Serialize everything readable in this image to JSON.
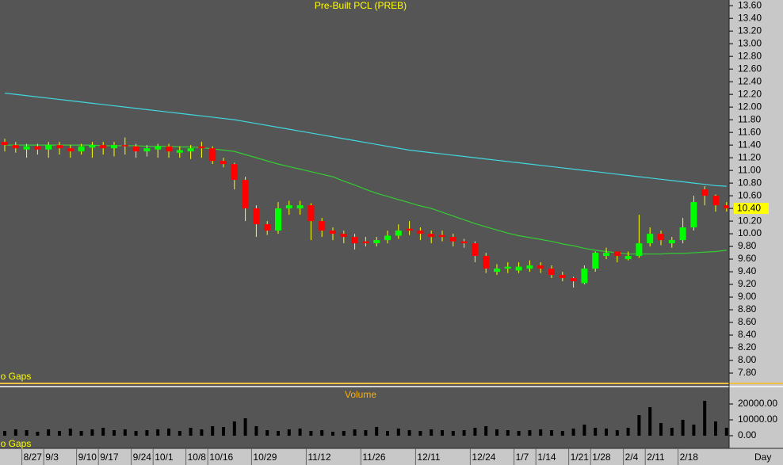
{
  "chart_data": [
    {
      "type": "candlestick",
      "title": "Pre-Built PCL (PREB)",
      "annotation": "No Gaps",
      "x_unit": "Day",
      "categories": [
        null,
        null,
        "8/27",
        null,
        "9/3",
        null,
        null,
        "9/10",
        null,
        "9/17",
        null,
        null,
        "9/24",
        null,
        "10/1",
        null,
        null,
        "10/8",
        null,
        "10/16",
        null,
        null,
        null,
        "10/29",
        null,
        null,
        null,
        null,
        "11/12",
        null,
        null,
        null,
        null,
        "11/26",
        null,
        null,
        null,
        null,
        "12/11",
        null,
        null,
        null,
        null,
        "12/24",
        null,
        null,
        null,
        "1/7",
        null,
        "1/14",
        null,
        null,
        "1/21",
        null,
        "1/28",
        null,
        null,
        "2/4",
        null,
        "2/11",
        null,
        null,
        "2/18",
        null,
        null,
        null,
        null
      ],
      "open": [
        11.45,
        11.4,
        11.33,
        11.38,
        11.33,
        11.4,
        11.35,
        11.3,
        11.36,
        11.4,
        11.35,
        11.4,
        11.38,
        11.3,
        11.33,
        11.38,
        11.28,
        11.3,
        11.38,
        11.35,
        11.15,
        11.1,
        10.85,
        10.4,
        10.15,
        10.05,
        10.4,
        10.4,
        10.45,
        10.2,
        10.05,
        10.0,
        9.95,
        9.88,
        9.85,
        9.9,
        9.97,
        10.08,
        10.05,
        10.0,
        9.98,
        9.95,
        9.88,
        9.85,
        9.65,
        9.4,
        9.45,
        9.42,
        9.45,
        9.5,
        9.45,
        9.35,
        9.3,
        9.22,
        9.45,
        9.65,
        9.72,
        9.6,
        9.65,
        9.85,
        10.0,
        9.85,
        9.9,
        10.1,
        10.7,
        10.6,
        10.45
      ],
      "high": [
        11.5,
        11.45,
        11.42,
        11.42,
        11.45,
        11.45,
        11.4,
        11.42,
        11.45,
        11.45,
        11.45,
        11.52,
        11.42,
        11.4,
        11.42,
        11.42,
        11.38,
        11.4,
        11.45,
        11.38,
        11.2,
        11.12,
        10.9,
        10.45,
        10.2,
        10.5,
        10.52,
        10.52,
        10.48,
        10.25,
        10.1,
        10.05,
        10.0,
        9.95,
        9.95,
        10.05,
        10.15,
        10.2,
        10.1,
        10.05,
        10.05,
        10.0,
        9.92,
        9.88,
        9.7,
        9.52,
        9.55,
        9.55,
        9.58,
        9.55,
        9.5,
        9.4,
        9.32,
        9.5,
        9.72,
        9.78,
        9.72,
        9.72,
        10.3,
        10.1,
        10.05,
        9.95,
        10.25,
        10.6,
        10.75,
        10.62,
        10.5
      ],
      "low": [
        11.3,
        11.28,
        11.2,
        11.25,
        11.2,
        11.25,
        11.2,
        11.25,
        11.2,
        11.25,
        11.22,
        11.25,
        11.2,
        11.22,
        11.2,
        11.2,
        11.2,
        11.18,
        11.2,
        11.1,
        11.05,
        10.7,
        10.2,
        9.95,
        9.98,
        10.0,
        10.3,
        10.3,
        9.9,
        9.95,
        9.9,
        9.85,
        9.75,
        9.8,
        9.8,
        9.85,
        9.92,
        9.98,
        9.9,
        9.85,
        9.88,
        9.8,
        9.78,
        9.55,
        9.38,
        9.35,
        9.38,
        9.38,
        9.4,
        9.38,
        9.3,
        9.25,
        9.15,
        9.2,
        9.4,
        9.6,
        9.55,
        9.58,
        9.62,
        9.8,
        9.82,
        9.78,
        9.85,
        10.05,
        10.45,
        10.35,
        10.35
      ],
      "close": [
        11.4,
        11.35,
        11.38,
        11.33,
        11.4,
        11.35,
        11.3,
        11.38,
        11.4,
        11.35,
        11.4,
        11.38,
        11.3,
        11.35,
        11.38,
        11.3,
        11.32,
        11.35,
        11.35,
        11.15,
        11.1,
        10.85,
        10.4,
        10.15,
        10.05,
        10.4,
        10.45,
        10.45,
        10.2,
        10.05,
        10.0,
        9.95,
        9.85,
        9.85,
        9.9,
        9.97,
        10.05,
        10.05,
        10.0,
        9.95,
        9.95,
        9.88,
        9.85,
        9.65,
        9.45,
        9.45,
        9.48,
        9.48,
        9.5,
        9.45,
        9.35,
        9.3,
        9.25,
        9.45,
        9.7,
        9.7,
        9.65,
        9.65,
        9.85,
        10.0,
        9.9,
        9.9,
        10.1,
        10.5,
        10.6,
        10.45,
        10.4
      ],
      "up_color": "#00ff00",
      "down_color": "#ff0000",
      "wick_color": "#ffff00",
      "overlays": [
        {
          "color": "#40d8e0",
          "values": [
            12.22,
            12.2,
            12.18,
            12.16,
            12.14,
            12.12,
            12.1,
            12.08,
            12.06,
            12.04,
            12.02,
            12.0,
            11.98,
            11.96,
            11.94,
            11.92,
            11.9,
            11.88,
            11.86,
            11.84,
            11.82,
            11.8,
            11.77,
            11.74,
            11.71,
            11.68,
            11.65,
            11.62,
            11.59,
            11.56,
            11.53,
            11.5,
            11.47,
            11.44,
            11.41,
            11.38,
            11.35,
            11.32,
            11.3,
            11.28,
            11.26,
            11.24,
            11.22,
            11.2,
            11.18,
            11.16,
            11.14,
            11.12,
            11.1,
            11.08,
            11.06,
            11.04,
            11.02,
            11.0,
            10.98,
            10.96,
            10.94,
            10.92,
            10.9,
            10.88,
            10.86,
            10.84,
            10.82,
            10.8,
            10.78,
            10.76,
            10.75
          ]
        },
        {
          "color": "#33cc33",
          "values": [
            11.4,
            11.4,
            11.4,
            11.4,
            11.4,
            11.4,
            11.4,
            11.4,
            11.4,
            11.39,
            11.39,
            11.39,
            11.39,
            11.38,
            11.38,
            11.38,
            11.37,
            11.37,
            11.36,
            11.34,
            11.32,
            11.3,
            11.25,
            11.2,
            11.15,
            11.1,
            11.06,
            11.02,
            10.98,
            10.94,
            10.9,
            10.83,
            10.77,
            10.7,
            10.64,
            10.59,
            10.54,
            10.49,
            10.44,
            10.4,
            10.34,
            10.28,
            10.22,
            10.16,
            10.11,
            10.06,
            10.01,
            9.97,
            9.94,
            9.91,
            9.88,
            9.84,
            9.81,
            9.77,
            9.74,
            9.72,
            9.7,
            9.68,
            9.68,
            9.68,
            9.68,
            9.69,
            9.69,
            9.7,
            9.71,
            9.72,
            9.74
          ]
        }
      ],
      "last_price": {
        "value": 10.4,
        "label": "10.40"
      },
      "ylim": [
        7.65,
        13.69
      ],
      "yticks": [
        {
          "value": 7.8,
          "label": "7.80"
        },
        {
          "value": 8.0,
          "label": "8.00"
        },
        {
          "value": 8.2,
          "label": "8.20"
        },
        {
          "value": 8.4,
          "label": "8.40"
        },
        {
          "value": 8.6,
          "label": "8.60"
        },
        {
          "value": 8.8,
          "label": "8.80"
        },
        {
          "value": 9.0,
          "label": "9.00"
        },
        {
          "value": 9.2,
          "label": "9.20"
        },
        {
          "value": 9.4,
          "label": "9.40"
        },
        {
          "value": 9.6,
          "label": "9.60"
        },
        {
          "value": 9.8,
          "label": "9.80"
        },
        {
          "value": 10.0,
          "label": "10.00"
        },
        {
          "value": 10.2,
          "label": "10.20"
        },
        {
          "value": 10.4,
          "label": "10.40"
        },
        {
          "value": 10.6,
          "label": "10.60"
        },
        {
          "value": 10.8,
          "label": "10.80"
        },
        {
          "value": 11.0,
          "label": "11.00"
        },
        {
          "value": 11.2,
          "label": "11.20"
        },
        {
          "value": 11.4,
          "label": "11.40"
        },
        {
          "value": 11.6,
          "label": "11.60"
        },
        {
          "value": 11.8,
          "label": "11.80"
        },
        {
          "value": 12.0,
          "label": "12.00"
        },
        {
          "value": 12.2,
          "label": "12.20"
        },
        {
          "value": 12.4,
          "label": "12.40"
        },
        {
          "value": 12.6,
          "label": "12.60"
        },
        {
          "value": 12.8,
          "label": "12.80"
        },
        {
          "value": 13.0,
          "label": "13.00"
        },
        {
          "value": 13.2,
          "label": "13.20"
        },
        {
          "value": 13.4,
          "label": "13.40"
        },
        {
          "value": 13.6,
          "label": "13.60"
        }
      ]
    },
    {
      "type": "bar",
      "title": "Volume",
      "annotation": "No Gaps",
      "color": "#000000",
      "values": [
        3000,
        4000,
        3500,
        2500,
        4000,
        3000,
        4500,
        3000,
        4000,
        5000,
        3500,
        4000,
        3000,
        3500,
        4000,
        4500,
        3000,
        5000,
        4000,
        6000,
        5500,
        9000,
        11000,
        6000,
        3500,
        3000,
        4000,
        4500,
        3000,
        3500,
        2500,
        3000,
        4000,
        3500,
        5500,
        3000,
        4500,
        3500,
        3000,
        4000,
        3500,
        3000,
        3500,
        5000,
        6000,
        4000,
        3500,
        3000,
        3500,
        4000,
        3500,
        3000,
        4500,
        7000,
        5000,
        4500,
        3500,
        5000,
        13000,
        18000,
        8000,
        5000,
        10000,
        7000,
        22000,
        9000,
        5000
      ],
      "ylim": [
        0,
        25000
      ],
      "yticks": [
        {
          "value": 0,
          "label": "0.00"
        },
        {
          "value": 10000,
          "label": "10000.00"
        },
        {
          "value": 20000,
          "label": "20000.00"
        }
      ]
    }
  ]
}
